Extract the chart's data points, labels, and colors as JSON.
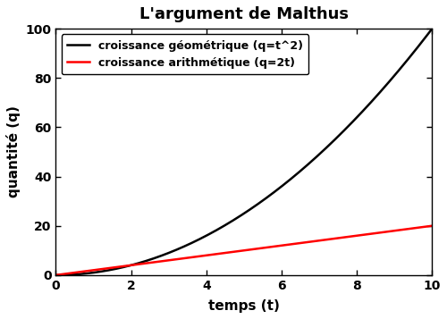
{
  "title": "L'argument de Malthus",
  "xlabel": "temps (t)",
  "ylabel": "quantité (q)",
  "xlim": [
    0,
    10
  ],
  "ylim": [
    0,
    100
  ],
  "xticks": [
    0,
    2,
    4,
    6,
    8,
    10
  ],
  "yticks": [
    0,
    20,
    40,
    60,
    80,
    100
  ],
  "line_geometric_color": "black",
  "line_geometric_label": "croissance géométrique (q=t^2)",
  "line_geometric_lw": 1.8,
  "line_arithmetic_color": "red",
  "line_arithmetic_label": "croissance arithmétique (q=2t)",
  "line_arithmetic_lw": 1.8,
  "background_color": "white",
  "legend_loc": "upper left",
  "legend_fontsize": 9,
  "title_fontsize": 13,
  "axis_label_fontsize": 11,
  "tick_fontsize": 10,
  "figsize": [
    5.0,
    3.57
  ],
  "dpi": 100
}
